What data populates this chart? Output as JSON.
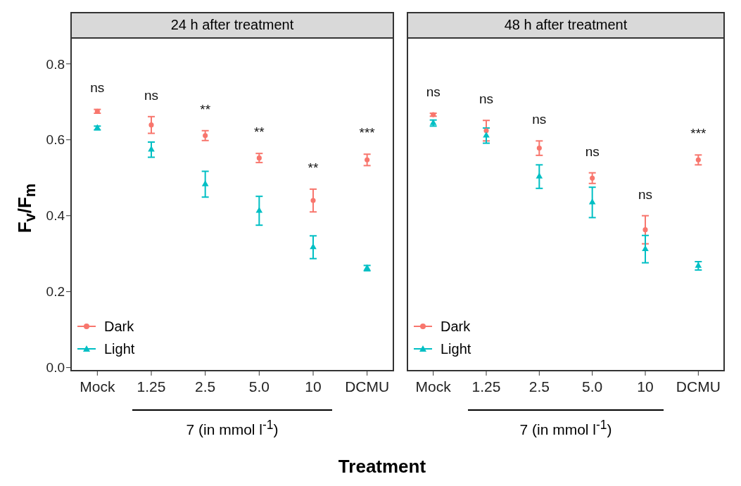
{
  "chart_data": [
    {
      "type": "scatter",
      "title": "24 h after treatment",
      "ylabel": "F$_{v}$/F$_{m}$",
      "xlabel": "Treatment",
      "categories": [
        "Mock",
        "1.25",
        "2.5",
        "5.0",
        "10",
        "DCMU"
      ],
      "ylim": [
        -0.01,
        0.87
      ],
      "yticks": [
        {
          "value": 0,
          "label": "0.0"
        },
        0.2,
        0.4,
        0.6,
        0.8
      ],
      "legend": "bottom left",
      "series": [
        {
          "name": "Dark",
          "color": "#f8766d",
          "marker": "circle",
          "values": [
            0.675,
            0.639,
            0.611,
            0.552,
            0.44,
            0.547
          ],
          "errors": [
            0.005,
            0.022,
            0.013,
            0.012,
            0.03,
            0.015
          ]
        },
        {
          "name": "Light",
          "color": "#00bfc4",
          "marker": "triangle",
          "values": [
            0.631,
            0.574,
            0.483,
            0.413,
            0.317,
            0.262
          ],
          "errors": [
            0.005,
            0.02,
            0.034,
            0.038,
            0.03,
            0.007
          ]
        }
      ],
      "annotations": [
        "ns",
        "ns",
        "**",
        "**",
        "**",
        "***",
        "7 (in mmol l$^{-1}$)"
      ]
    },
    {
      "type": "scatter",
      "title": "48 h after treatment",
      "categories": [
        "Mock",
        "1.25",
        "2.5",
        "5.0",
        "10",
        "DCMU"
      ],
      "ylim": [
        -0.01,
        0.87
      ],
      "legend": "bottom left",
      "tick_labels": "x",
      "series": [
        {
          "name": "Dark",
          "color": "#f8766d",
          "marker": "circle",
          "values": [
            0.666,
            0.624,
            0.578,
            0.499,
            0.363,
            0.547
          ],
          "errors": [
            0.004,
            0.027,
            0.019,
            0.014,
            0.037,
            0.013
          ]
        },
        {
          "name": "Light",
          "color": "#00bfc4",
          "marker": "triangle",
          "values": [
            0.644,
            0.611,
            0.503,
            0.435,
            0.312,
            0.268
          ],
          "errors": [
            0.008,
            0.02,
            0.031,
            0.04,
            0.036,
            0.011
          ]
        }
      ],
      "annotations": [
        "ns",
        "ns",
        "ns",
        "ns",
        "ns",
        "***",
        "7 (in mmol l$^{-1}$)"
      ]
    }
  ]
}
